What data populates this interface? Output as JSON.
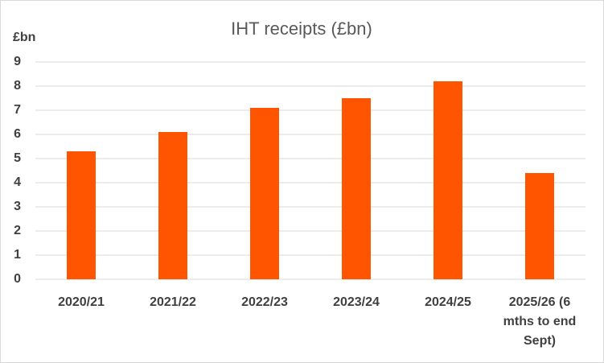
{
  "chart_data": {
    "type": "bar",
    "title": "IHT receipts (£bn)",
    "y_label": "£bn",
    "categories": [
      "2020/21",
      "2021/22",
      "2022/23",
      "2023/24",
      "2024/25",
      "2025/26 (6 mths to end Sept)"
    ],
    "values": [
      5.3,
      6.1,
      7.1,
      7.5,
      8.2,
      4.4
    ],
    "color": "#ff5500",
    "ylim": [
      0,
      9
    ],
    "yticks": [
      0,
      1,
      2,
      3,
      4,
      5,
      6,
      7,
      8,
      9
    ],
    "grid": true
  }
}
